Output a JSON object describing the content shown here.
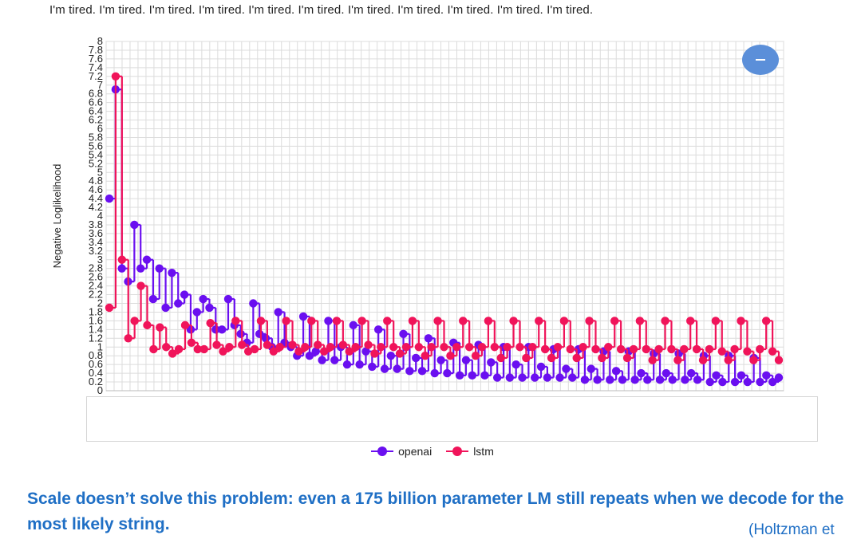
{
  "sentence": "I'm tired. I'm tired. I'm tired. I'm tired. I'm tired. I'm tired. I'm tired. I'm tired. I'm tired. I'm tired. I'm tired.",
  "caption": "Scale doesn’t solve this problem: even a 175 billion parameter LM still repeats when we decode for the most likely string.",
  "citation": "(Holtzman et",
  "zoom_button_icon": "minus-icon",
  "colors": {
    "openai": "#6a0ff0",
    "lstm": "#f0145a",
    "button": "#5b8fd9",
    "caption": "#1f6fc5"
  },
  "chart_data": {
    "type": "line",
    "ylabel": "Negative Loglikelihood",
    "xlabel": "",
    "ylim": [
      0,
      8
    ],
    "yticks": [
      "0",
      "0.2",
      "0.4",
      "0.6",
      "0.8",
      "1",
      "1.2",
      "1.4",
      "1.6",
      "1.8",
      "2",
      "2.2",
      "2.4",
      "2.6",
      "2.8",
      "3",
      "3.2",
      "3.4",
      "3.6",
      "3.8",
      "4",
      "4.2",
      "4.4",
      "4.6",
      "4.8",
      "5",
      "5.2",
      "5.4",
      "5.6",
      "5.8",
      "6",
      "6.2",
      "6.4",
      "6.6",
      "6.8",
      "7",
      "7.2",
      "7.4",
      "7.6",
      "7.8",
      "8"
    ],
    "grid": true,
    "legend_position": "bottom",
    "series": [
      {
        "name": "openai",
        "values": [
          4.4,
          6.9,
          2.8,
          2.5,
          3.8,
          2.8,
          3.0,
          2.1,
          2.8,
          1.9,
          2.7,
          2.0,
          2.2,
          1.4,
          1.8,
          2.1,
          1.9,
          1.4,
          1.4,
          2.1,
          1.5,
          1.3,
          1.1,
          2.0,
          1.3,
          1.2,
          1.0,
          1.8,
          1.1,
          1.0,
          0.8,
          1.7,
          0.8,
          0.9,
          0.7,
          1.6,
          0.7,
          1.0,
          0.6,
          1.5,
          0.6,
          0.9,
          0.55,
          1.4,
          0.5,
          0.8,
          0.5,
          1.3,
          0.45,
          0.75,
          0.45,
          1.2,
          0.4,
          0.7,
          0.4,
          1.1,
          0.35,
          0.7,
          0.35,
          1.05,
          0.35,
          0.65,
          0.3,
          1.0,
          0.3,
          0.6,
          0.3,
          1.0,
          0.3,
          0.55,
          0.3,
          0.95,
          0.3,
          0.5,
          0.3,
          0.95,
          0.25,
          0.5,
          0.25,
          0.9,
          0.25,
          0.45,
          0.25,
          0.9,
          0.25,
          0.4,
          0.25,
          0.85,
          0.25,
          0.4,
          0.25,
          0.85,
          0.25,
          0.4,
          0.25,
          0.8,
          0.2,
          0.35,
          0.2,
          0.8,
          0.2,
          0.35,
          0.2,
          0.75,
          0.2,
          0.35,
          0.2,
          0.3
        ]
      },
      {
        "name": "lstm",
        "values": [
          1.9,
          7.2,
          3.0,
          1.2,
          1.6,
          2.4,
          1.5,
          0.95,
          1.45,
          1.0,
          0.85,
          0.95,
          1.5,
          1.1,
          0.95,
          0.95,
          1.55,
          1.05,
          0.9,
          1.0,
          1.6,
          1.05,
          0.9,
          0.95,
          1.6,
          1.05,
          0.9,
          1.0,
          1.6,
          1.05,
          0.9,
          1.0,
          1.6,
          1.05,
          0.9,
          1.0,
          1.6,
          1.05,
          0.9,
          1.0,
          1.6,
          1.05,
          0.85,
          1.0,
          1.6,
          1.0,
          0.85,
          1.0,
          1.6,
          1.0,
          0.8,
          1.0,
          1.6,
          1.0,
          0.8,
          1.0,
          1.6,
          1.0,
          0.8,
          1.0,
          1.6,
          1.0,
          0.75,
          1.0,
          1.6,
          1.0,
          0.75,
          1.0,
          1.6,
          0.95,
          0.75,
          1.0,
          1.6,
          0.95,
          0.75,
          1.0,
          1.6,
          0.95,
          0.75,
          1.0,
          1.6,
          0.95,
          0.75,
          0.95,
          1.6,
          0.95,
          0.7,
          0.95,
          1.6,
          0.95,
          0.7,
          0.95,
          1.6,
          0.95,
          0.7,
          0.95,
          1.6,
          0.9,
          0.7,
          0.95,
          1.6,
          0.9,
          0.7,
          0.95,
          1.6,
          0.9,
          0.7
        ]
      }
    ]
  }
}
